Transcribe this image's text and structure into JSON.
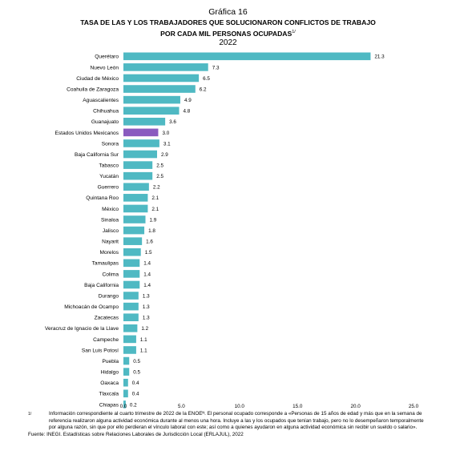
{
  "header": {
    "figure_label": "Gráfica 16",
    "title_line1": "TASA DE LAS Y LOS TRABAJADORES QUE SOLUCIONARON CONFLICTOS DE TRABAJO",
    "title_line2": "POR CADA MIL PERSONAS OCUPADAS",
    "title_ref": "1/",
    "year": "2022"
  },
  "colors": {
    "bar": "#4fb9c3",
    "highlight": "#8a5bbf"
  },
  "chart_data": {
    "type": "bar",
    "orientation": "horizontal",
    "categories": [
      "Querétaro",
      "Nuevo León",
      "Ciudad de México",
      "Coahuila de Zaragoza",
      "Aguascalientes",
      "Chihuahua",
      "Guanajuato",
      "Estados Unidos Mexicanos",
      "Sonora",
      "Baja California Sur",
      "Tabasco",
      "Yucatán",
      "Guerrero",
      "Quintana Roo",
      "México",
      "Sinaloa",
      "Jalisco",
      "Nayarit",
      "Morelos",
      "Tamaulipas",
      "Colima",
      "Baja California",
      "Durango",
      "Michoacán de Ocampo",
      "Zacatecas",
      "Veracruz de Ignacio de la Llave",
      "Campeche",
      "San Luis Potosí",
      "Puebla",
      "Hidalgo",
      "Oaxaca",
      "Tlaxcala",
      "Chiapas"
    ],
    "values": [
      21.3,
      7.3,
      6.5,
      6.2,
      4.9,
      4.8,
      3.6,
      3.0,
      3.1,
      2.9,
      2.5,
      2.5,
      2.2,
      2.1,
      2.1,
      1.9,
      1.8,
      1.6,
      1.5,
      1.4,
      1.4,
      1.4,
      1.3,
      1.3,
      1.3,
      1.2,
      1.1,
      1.1,
      0.5,
      0.5,
      0.4,
      0.4,
      0.2
    ],
    "value_labels": [
      "21.3",
      "7.3",
      "6.5",
      "6.2",
      "4.9",
      "4.8",
      "3.6",
      "3.0",
      "3.1",
      "2.9",
      "2.5",
      "2.5",
      "2.2",
      "2.1",
      "2.1",
      "1.9",
      "1.8",
      "1.6",
      "1.5",
      "1.4",
      "1.4",
      "1.4",
      "1.3",
      "1.3",
      "1.3",
      "1.2",
      "1.1",
      "1.1",
      "0.5",
      "0.5",
      "0.4",
      "0.4",
      "0.2"
    ],
    "highlight": "Estados Unidos Mexicanos",
    "xlim": [
      0,
      25
    ],
    "xticks": [
      "0.0",
      "5.0",
      "10.0",
      "15.0",
      "20.0",
      "25.0"
    ],
    "grid": false,
    "title": "TASA DE LAS Y LOS TRABAJADORES QUE SOLUCIONARON CONFLICTOS DE TRABAJO POR CADA MIL PERSONAS OCUPADAS",
    "xlabel": "",
    "ylabel": ""
  },
  "footnote": {
    "mark": "1/",
    "text": "Información correspondiente al cuarto trimestre de 2022 de la ENOEᴺ. El personal ocupado corresponde a «Personas de 15 años de edad y más que en la semana de referencia realizaron alguna actividad económica durante al menos una hora. Incluye a las y los ocupados que tenían trabajo, pero no lo desempeñaron temporalmente por alguna razón, sin que por ello perdieran el vínculo laboral con este; así como a quienes ayudaron en alguna actividad económica sin recibir un sueldo o salario»."
  },
  "source": "Fuente: INEGI. Estadísticas sobre Relaciones Laborales de Jurisdicción Local (ERLAJUL), 2022"
}
